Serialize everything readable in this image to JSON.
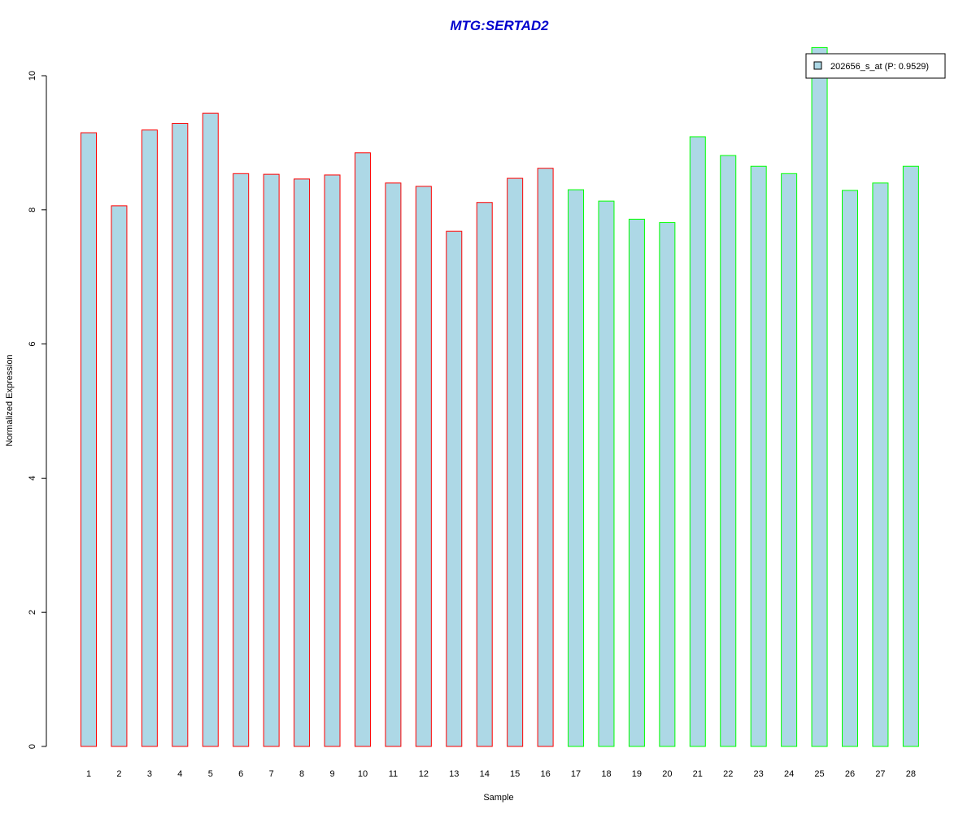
{
  "chart_data": {
    "type": "bar",
    "title": "MTG:SERTAD2",
    "xlabel": "Sample",
    "ylabel": "Normalized Expression",
    "categories": [
      "1",
      "2",
      "3",
      "4",
      "5",
      "6",
      "7",
      "8",
      "9",
      "10",
      "11",
      "12",
      "13",
      "14",
      "15",
      "16",
      "17",
      "18",
      "19",
      "20",
      "21",
      "22",
      "23",
      "24",
      "25",
      "26",
      "27",
      "28"
    ],
    "series": [
      {
        "name": "202656_s_at (P: 0.9529)",
        "values": [
          9.15,
          8.06,
          9.19,
          9.29,
          9.44,
          8.54,
          8.53,
          8.46,
          8.52,
          8.85,
          8.4,
          8.35,
          7.68,
          8.11,
          8.47,
          8.62,
          8.3,
          8.13,
          7.86,
          7.81,
          9.09,
          8.81,
          8.65,
          8.54,
          10.42,
          8.29,
          8.4,
          8.65
        ]
      }
    ],
    "group_colors": [
      "red",
      "red",
      "red",
      "red",
      "red",
      "red",
      "red",
      "red",
      "red",
      "red",
      "red",
      "red",
      "red",
      "red",
      "red",
      "red",
      "green",
      "green",
      "green",
      "green",
      "green",
      "green",
      "green",
      "green",
      "green",
      "green",
      "green",
      "green"
    ],
    "yticks": [
      0,
      2,
      4,
      6,
      8,
      10
    ],
    "ylim": [
      0,
      10.42
    ],
    "grid": false,
    "legend_position": "top-right",
    "colors": {
      "bar_fill": "#add8e6",
      "red": "#ff0000",
      "green": "#00ff00",
      "title": "#0000cd"
    }
  }
}
